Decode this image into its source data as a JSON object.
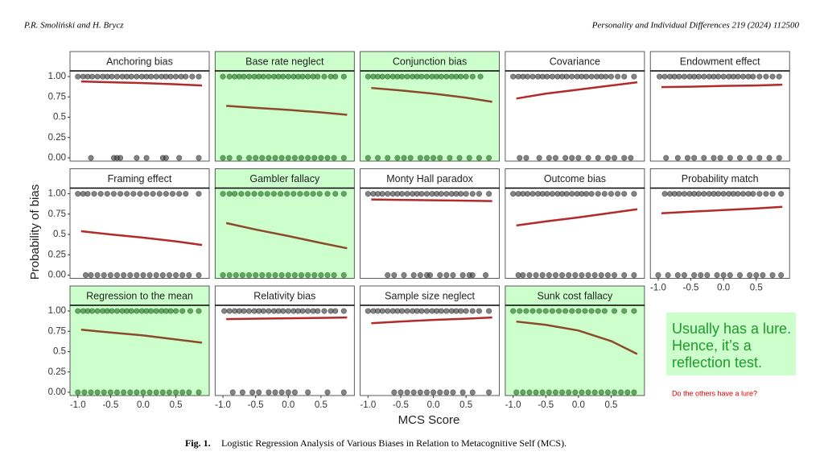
{
  "header": {
    "authors": "P.R. Smoliński and H. Brycz",
    "journal": "Personality and Individual Differences 219 (2024) 112500"
  },
  "chart_data": {
    "type": "facet_scatter",
    "y_label": "Probability of bias",
    "x_label": "MCS Score",
    "xlim": [
      -1.12,
      1.01
    ],
    "ylim": [
      -0.04,
      1.07
    ],
    "xticks": [
      {
        "value": -1.0,
        "label": "-1.0"
      },
      -0.5,
      {
        "value": 0,
        "label": "0.0"
      },
      0.5
    ],
    "yticks": [
      {
        "value": 0,
        "label": "0.00"
      },
      0.25,
      0.5,
      0.75,
      {
        "value": 1,
        "label": "1.00"
      }
    ],
    "highlight_color": "#ccffcc",
    "line_color": "#b22a2a",
    "highlight_line_color": "#8b4a2b",
    "point_color": "#333333",
    "highlight_point_color": "#1f6b1f",
    "line_x": [
      -0.95,
      -0.5,
      0,
      0.5,
      0.9
    ],
    "panels": [
      {
        "title": "Anchoring bias",
        "highlight": false,
        "line": [
          0.94,
          0.93,
          0.92,
          0.905,
          0.89
        ],
        "x1": [
          -1.0,
          -0.92,
          -0.85,
          -0.78,
          -0.7,
          -0.62,
          -0.55,
          -0.48,
          -0.4,
          -0.32,
          -0.25,
          -0.18,
          -0.1,
          -0.02,
          0.05,
          0.12,
          0.2,
          0.28,
          0.35,
          0.42,
          0.5,
          0.58,
          0.65,
          0.75,
          0.85
        ],
        "x0": [
          -0.8,
          -0.45,
          -0.4,
          -0.35,
          -0.1,
          0.05,
          0.3,
          0.35,
          0.55,
          0.85
        ]
      },
      {
        "title": "Base rate neglect",
        "highlight": true,
        "line": [
          0.64,
          0.615,
          0.59,
          0.56,
          0.53
        ],
        "x1": [
          -1.0,
          -0.9,
          -0.82,
          -0.75,
          -0.68,
          -0.6,
          -0.52,
          -0.45,
          -0.38,
          -0.3,
          -0.22,
          -0.15,
          -0.08,
          0.0,
          0.08,
          0.15,
          0.22,
          0.3,
          0.38,
          0.45,
          0.55,
          0.65,
          0.72,
          0.85
        ],
        "x0": [
          -1.0,
          -0.9,
          -0.75,
          -0.6,
          -0.5,
          -0.4,
          -0.3,
          -0.2,
          -0.1,
          0.0,
          0.1,
          0.2,
          0.3,
          0.4,
          0.5,
          0.6,
          0.7,
          0.85
        ]
      },
      {
        "title": "Conjunction bias",
        "highlight": true,
        "line": [
          0.86,
          0.83,
          0.79,
          0.74,
          0.69
        ],
        "x1": [
          -1.0,
          -0.92,
          -0.85,
          -0.78,
          -0.7,
          -0.62,
          -0.55,
          -0.48,
          -0.4,
          -0.32,
          -0.25,
          -0.18,
          -0.1,
          -0.02,
          0.05,
          0.12,
          0.2,
          0.28,
          0.35,
          0.42,
          0.5,
          0.6,
          0.72
        ],
        "x0": [
          -1.0,
          -0.85,
          -0.7,
          -0.55,
          -0.45,
          -0.35,
          -0.2,
          -0.1,
          0.0,
          0.1,
          0.25,
          0.4,
          0.55,
          0.7,
          0.85
        ]
      },
      {
        "title": "Covariance",
        "highlight": false,
        "line": [
          0.73,
          0.79,
          0.84,
          0.89,
          0.93
        ],
        "x1": [
          -1.0,
          -0.92,
          -0.85,
          -0.78,
          -0.7,
          -0.62,
          -0.55,
          -0.48,
          -0.4,
          -0.32,
          -0.25,
          -0.18,
          -0.1,
          -0.02,
          0.05,
          0.12,
          0.2,
          0.28,
          0.35,
          0.42,
          0.5,
          0.6,
          0.7,
          0.85
        ],
        "x0": [
          -0.9,
          -0.8,
          -0.6,
          -0.45,
          -0.35,
          -0.2,
          -0.1,
          0.0,
          0.15,
          0.3,
          0.45,
          0.55,
          0.7,
          0.8
        ]
      },
      {
        "title": "Endowment effect",
        "highlight": false,
        "line": [
          0.87,
          0.875,
          0.885,
          0.89,
          0.9
        ],
        "x1": [
          -0.98,
          -0.9,
          -0.82,
          -0.75,
          -0.68,
          -0.6,
          -0.52,
          -0.45,
          -0.38,
          -0.3,
          -0.22,
          -0.15,
          -0.08,
          0.0,
          0.08,
          0.15,
          0.22,
          0.3,
          0.38,
          0.45,
          0.55,
          0.65,
          0.75,
          0.85
        ],
        "x0": [
          -0.88,
          -0.7,
          -0.55,
          -0.45,
          -0.3,
          -0.15,
          -0.05,
          0.1,
          0.25,
          0.4,
          0.55,
          0.7,
          0.85
        ]
      },
      {
        "title": "Framing effect",
        "highlight": false,
        "line": [
          0.54,
          0.5,
          0.46,
          0.415,
          0.37
        ],
        "x1": [
          -1.0,
          -0.92,
          -0.85,
          -0.75,
          -0.65,
          -0.55,
          -0.45,
          -0.35,
          -0.25,
          -0.15,
          -0.05,
          0.05,
          0.15,
          0.25,
          0.35,
          0.45,
          0.55,
          0.65,
          0.85
        ],
        "x0": [
          -0.88,
          -0.8,
          -0.7,
          -0.6,
          -0.5,
          -0.4,
          -0.3,
          -0.2,
          -0.1,
          0.0,
          0.1,
          0.2,
          0.3,
          0.4,
          0.5,
          0.6,
          0.7,
          0.85
        ]
      },
      {
        "title": "Gambler fallacy",
        "highlight": true,
        "line": [
          0.64,
          0.56,
          0.48,
          0.395,
          0.33
        ],
        "x1": [
          -1.0,
          -0.9,
          -0.82,
          -0.72,
          -0.62,
          -0.52,
          -0.42,
          -0.32,
          -0.22,
          -0.12,
          -0.02,
          0.08,
          0.18,
          0.28,
          0.38,
          0.48,
          0.6,
          0.72,
          0.85
        ],
        "x0": [
          -1.0,
          -0.9,
          -0.8,
          -0.7,
          -0.6,
          -0.5,
          -0.4,
          -0.3,
          -0.2,
          -0.1,
          0.0,
          0.1,
          0.2,
          0.3,
          0.4,
          0.5,
          0.6,
          0.7,
          0.85
        ]
      },
      {
        "title": "Monty Hall paradox",
        "highlight": false,
        "line": [
          0.93,
          0.925,
          0.92,
          0.915,
          0.91
        ],
        "x1": [
          -1.0,
          -0.92,
          -0.85,
          -0.78,
          -0.7,
          -0.62,
          -0.55,
          -0.48,
          -0.4,
          -0.32,
          -0.25,
          -0.18,
          -0.1,
          -0.02,
          0.05,
          0.12,
          0.2,
          0.28,
          0.35,
          0.42,
          0.5,
          0.6,
          0.7,
          0.85
        ],
        "x0": [
          -0.7,
          -0.6,
          -0.45,
          -0.3,
          -0.2,
          -0.1,
          -0.05,
          0.1,
          0.2,
          0.3,
          0.45,
          0.55,
          0.6,
          0.8
        ]
      },
      {
        "title": "Outcome bias",
        "highlight": false,
        "line": [
          0.61,
          0.66,
          0.71,
          0.765,
          0.81
        ],
        "x1": [
          -1.0,
          -0.92,
          -0.85,
          -0.78,
          -0.7,
          -0.62,
          -0.55,
          -0.48,
          -0.4,
          -0.32,
          -0.25,
          -0.18,
          -0.1,
          -0.02,
          0.05,
          0.12,
          0.2,
          0.3,
          0.4,
          0.5,
          0.6,
          0.7,
          0.85
        ],
        "x0": [
          -0.92,
          -0.85,
          -0.75,
          -0.65,
          -0.55,
          -0.45,
          -0.35,
          -0.25,
          -0.15,
          -0.05,
          0.05,
          0.15,
          0.25,
          0.35,
          0.45,
          0.55,
          0.7,
          0.85
        ]
      },
      {
        "title": "Probability match",
        "highlight": false,
        "line": [
          0.76,
          0.78,
          0.8,
          0.82,
          0.84
        ],
        "x1": [
          -0.9,
          -0.82,
          -0.75,
          -0.68,
          -0.6,
          -0.52,
          -0.45,
          -0.38,
          -0.3,
          -0.22,
          -0.15,
          -0.08,
          0.0,
          0.08,
          0.15,
          0.22,
          0.3,
          0.38,
          0.45,
          0.55,
          0.65,
          0.75,
          0.88
        ],
        "x0": [
          -1.0,
          -0.85,
          -0.7,
          -0.6,
          -0.45,
          -0.35,
          -0.25,
          -0.1,
          0.0,
          0.1,
          0.25,
          0.4,
          0.5,
          0.6,
          0.75,
          0.88
        ]
      },
      {
        "title": "Regression to the mean",
        "highlight": true,
        "line": [
          0.77,
          0.735,
          0.7,
          0.65,
          0.61
        ],
        "x1": [
          -1.0,
          -0.92,
          -0.85,
          -0.78,
          -0.7,
          -0.62,
          -0.55,
          -0.48,
          -0.4,
          -0.32,
          -0.25,
          -0.18,
          -0.1,
          -0.02,
          0.05,
          0.12,
          0.2,
          0.28,
          0.35,
          0.42,
          0.5,
          0.6,
          0.72,
          0.85
        ],
        "x0": [
          -1.0,
          -0.9,
          -0.8,
          -0.7,
          -0.6,
          -0.5,
          -0.4,
          -0.3,
          -0.2,
          -0.1,
          0.0,
          0.1,
          0.2,
          0.3,
          0.4,
          0.5,
          0.6,
          0.7,
          0.85
        ]
      },
      {
        "title": "Relativity bias",
        "highlight": false,
        "line": [
          0.9,
          0.905,
          0.91,
          0.915,
          0.92
        ],
        "x1": [
          -0.98,
          -0.9,
          -0.82,
          -0.75,
          -0.68,
          -0.6,
          -0.52,
          -0.45,
          -0.38,
          -0.3,
          -0.22,
          -0.15,
          -0.08,
          0.0,
          0.08,
          0.15,
          0.22,
          0.3,
          0.38,
          0.45,
          0.55,
          0.65,
          0.72,
          0.85
        ],
        "x0": [
          -0.85,
          -0.7,
          -0.55,
          -0.45,
          -0.3,
          -0.2,
          -0.1,
          0.0,
          0.1,
          0.3,
          0.6,
          0.85
        ]
      },
      {
        "title": "Sample size neglect",
        "highlight": false,
        "line": [
          0.85,
          0.87,
          0.89,
          0.905,
          0.92
        ],
        "x1": [
          -1.0,
          -0.92,
          -0.85,
          -0.78,
          -0.7,
          -0.62,
          -0.55,
          -0.48,
          -0.4,
          -0.32,
          -0.25,
          -0.18,
          -0.1,
          -0.02,
          0.05,
          0.12,
          0.2,
          0.28,
          0.35,
          0.42,
          0.5,
          0.6,
          0.7,
          0.85
        ],
        "x0": [
          -0.6,
          -0.5,
          -0.4,
          -0.3,
          -0.2,
          -0.1,
          0.0,
          0.1,
          0.2,
          0.3,
          0.45,
          0.6,
          0.85
        ]
      },
      {
        "title": "Sunk cost fallacy",
        "highlight": true,
        "line": [
          0.87,
          0.83,
          0.76,
          0.63,
          0.47
        ],
        "x1": [
          -1.0,
          -0.9,
          -0.8,
          -0.7,
          -0.6,
          -0.5,
          -0.4,
          -0.3,
          -0.2,
          -0.1,
          0.0,
          0.1,
          0.2,
          0.3,
          0.4,
          0.55,
          0.7,
          0.85
        ],
        "x0": [
          -0.95,
          -0.85,
          -0.75,
          -0.65,
          -0.55,
          -0.45,
          -0.35,
          -0.25,
          -0.15,
          -0.05,
          0.05,
          0.15,
          0.25,
          0.35,
          0.45,
          0.55,
          0.65,
          0.75,
          0.85
        ]
      }
    ]
  },
  "annotation": {
    "lines": [
      "Usually has a lure.",
      "Hence, it’s a",
      "reflection test."
    ],
    "question": "Do the others have a lure?"
  },
  "caption": {
    "label": "Fig. 1.",
    "text": "Logistic Regression Analysis of Various Biases in Relation to Metacognitive Self (MCS)."
  }
}
